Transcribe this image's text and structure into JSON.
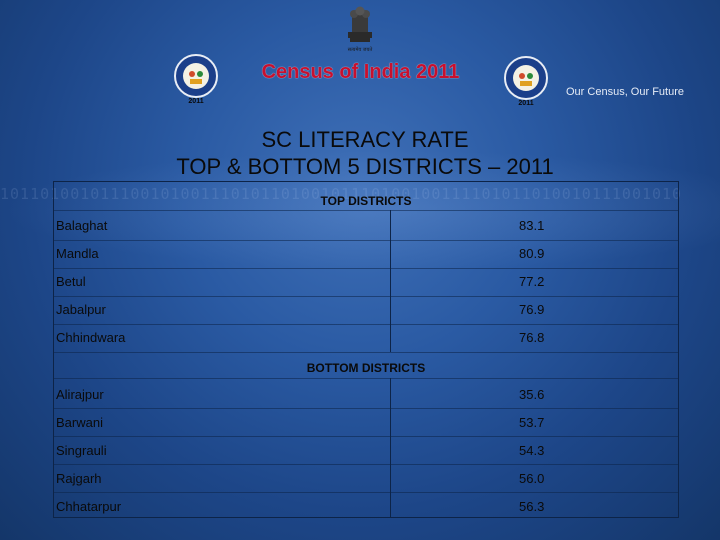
{
  "header": {
    "census_title": "Census of India 2011",
    "tagline": "Our Census, Our Future",
    "logo_year": "2011",
    "emblem_caption": "सत्यमेव जयते"
  },
  "title": {
    "line1": "SC LITERACY RATE",
    "line2": "TOP & BOTTOM 5 DISTRICTS – 2011"
  },
  "table": {
    "top_heading": "TOP DISTRICTS",
    "top_rows": [
      {
        "district": "Balaghat",
        "rate": "83.1"
      },
      {
        "district": "Mandla",
        "rate": "80.9"
      },
      {
        "district": "Betul",
        "rate": "77.2"
      },
      {
        "district": "Jabalpur",
        "rate": "76.9"
      },
      {
        "district": "Chhindwara",
        "rate": "76.8"
      }
    ],
    "bottom_heading": "BOTTOM DISTRICTS",
    "bottom_rows": [
      {
        "district": "Alirajpur",
        "rate": "35.6"
      },
      {
        "district": "Barwani",
        "rate": "53.7"
      },
      {
        "district": "Singrauli",
        "rate": "54.3"
      },
      {
        "district": "Rajgarh",
        "rate": "56.0"
      },
      {
        "district": "Chhatarpur",
        "rate": "56.3"
      }
    ]
  }
}
